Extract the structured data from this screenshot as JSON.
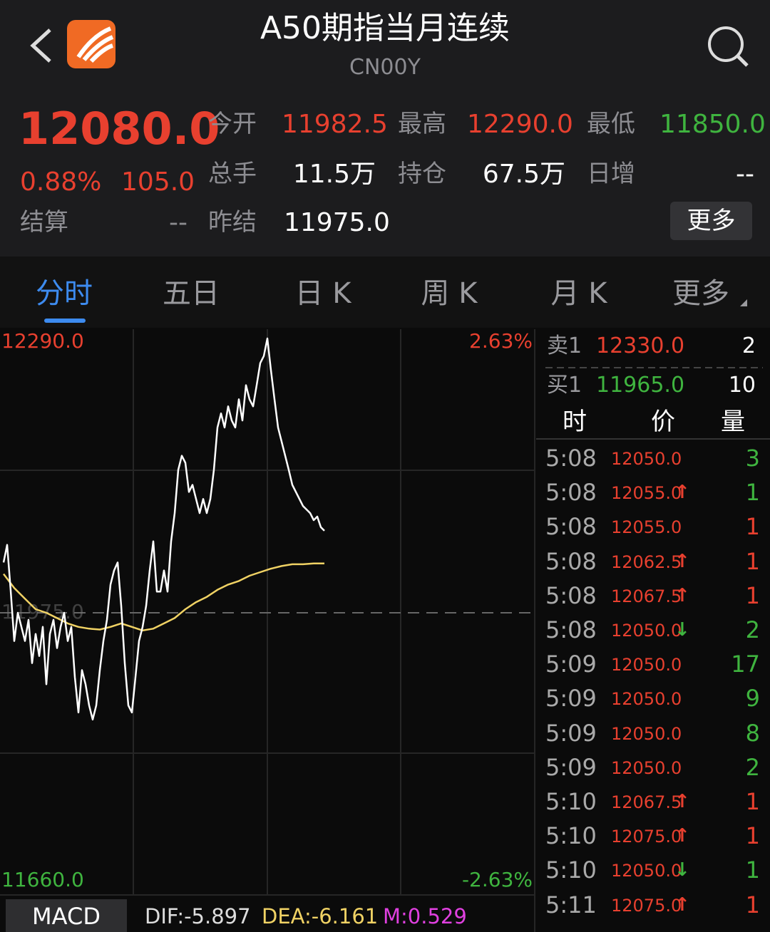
{
  "header": {
    "title": "A50期指当月连续",
    "code": "CN00Y"
  },
  "quote": {
    "price": "12080.0",
    "change_pct": "0.88%",
    "change": "105.0",
    "fields": [
      {
        "label": "今开",
        "value": "11982.5",
        "color": "#e8402f"
      },
      {
        "label": "最高",
        "value": "12290.0",
        "color": "#e8402f"
      },
      {
        "label": "最低",
        "value": "11850.0",
        "color": "#3fb43f"
      },
      {
        "label": "总手",
        "value": "11.5万",
        "color": "#ffffff"
      },
      {
        "label": "持仓",
        "value": "67.5万",
        "color": "#ffffff"
      },
      {
        "label": "日增",
        "value": "--",
        "color": "#ffffff"
      },
      {
        "label": "结算",
        "value": "--",
        "color": "#8a8a8e"
      },
      {
        "label": "昨结",
        "value": "11975.0",
        "color": "#ffffff"
      }
    ],
    "more": "更多"
  },
  "tabs": [
    "分时",
    "五日",
    "日 K",
    "周 K",
    "月 K",
    "更多"
  ],
  "chart": {
    "ylim": [
      11660,
      12290
    ],
    "yticks": [
      {
        "value": 12290,
        "label": "12290.0"
      },
      {
        "value": 11975,
        "label": "11975.0"
      },
      {
        "value": 11660,
        "label": "11660.0"
      }
    ],
    "pct_labels": [
      "2.63%",
      "-2.63%"
    ],
    "price_color": "#ffffff",
    "average_color": "#f0d264",
    "price": [
      12032,
      12052,
      12000,
      11943,
      11975,
      11959,
      11943,
      11967,
      11918,
      11951,
      11926,
      11959,
      11894,
      11951,
      11967,
      11935,
      11959,
      11975,
      11943,
      11959,
      11902,
      11862,
      11910,
      11894,
      11870,
      11854,
      11870,
      11910,
      11943,
      11967,
      12007,
      12023,
      12032,
      11983,
      11918,
      11870,
      11862,
      11902,
      11943,
      11959,
      11983,
      12023,
      12056,
      11999,
      11999,
      12023,
      11999,
      12056,
      12088,
      12137,
      12153,
      12145,
      12112,
      12120,
      12104,
      12088,
      12104,
      12088,
      12104,
      12137,
      12185,
      12201,
      12185,
      12209,
      12193,
      12185,
      12217,
      12193,
      12233,
      12217,
      12209,
      12233,
      12258,
      12266,
      12286,
      12250,
      12217,
      12185,
      12169,
      12153,
      12137,
      12120,
      12112,
      12104,
      12096,
      12092,
      12088,
      12080,
      12084,
      12072,
      12068
    ],
    "average": [
      12019,
      12003,
      11991,
      11979,
      11975,
      11969,
      11963,
      11959,
      11957,
      11956,
      11959,
      11963,
      11959,
      11955,
      11957,
      11963,
      11969,
      11979,
      11987,
      11993,
      12001,
      12007,
      12011,
      12017,
      12021,
      12025,
      12028,
      12030,
      12030,
      12031,
      12031
    ]
  },
  "orderbook": [
    {
      "side": "卖1",
      "price": "12330.0",
      "volume": "2",
      "color": "#e8402f"
    },
    {
      "side": "买1",
      "price": "11965.0",
      "volume": "10",
      "color": "#3fb43f"
    }
  ],
  "trades_header": [
    "时",
    "价",
    "量"
  ],
  "trades": [
    {
      "time": "5:08",
      "price": "12050.0",
      "arrow": "",
      "volume": "3",
      "vcolor": "#3fb43f",
      "acolor": ""
    },
    {
      "time": "5:08",
      "price": "12055.0",
      "arrow": "↑",
      "volume": "1",
      "vcolor": "#3fb43f",
      "acolor": "#e8402f"
    },
    {
      "time": "5:08",
      "price": "12055.0",
      "arrow": "",
      "volume": "1",
      "vcolor": "#e8402f",
      "acolor": ""
    },
    {
      "time": "5:08",
      "price": "12062.5",
      "arrow": "↑",
      "volume": "1",
      "vcolor": "#e8402f",
      "acolor": "#e8402f"
    },
    {
      "time": "5:08",
      "price": "12067.5",
      "arrow": "↑",
      "volume": "1",
      "vcolor": "#e8402f",
      "acolor": "#e8402f"
    },
    {
      "time": "5:08",
      "price": "12050.0",
      "arrow": "↓",
      "volume": "2",
      "vcolor": "#3fb43f",
      "acolor": "#3fb43f"
    },
    {
      "time": "5:09",
      "price": "12050.0",
      "arrow": "",
      "volume": "17",
      "vcolor": "#3fb43f",
      "acolor": ""
    },
    {
      "time": "5:09",
      "price": "12050.0",
      "arrow": "",
      "volume": "9",
      "vcolor": "#3fb43f",
      "acolor": ""
    },
    {
      "time": "5:09",
      "price": "12050.0",
      "arrow": "",
      "volume": "8",
      "vcolor": "#3fb43f",
      "acolor": ""
    },
    {
      "time": "5:09",
      "price": "12050.0",
      "arrow": "",
      "volume": "2",
      "vcolor": "#3fb43f",
      "acolor": ""
    },
    {
      "time": "5:10",
      "price": "12067.5",
      "arrow": "↑",
      "volume": "1",
      "vcolor": "#e8402f",
      "acolor": "#e8402f"
    },
    {
      "time": "5:10",
      "price": "12075.0",
      "arrow": "↑",
      "volume": "1",
      "vcolor": "#e8402f",
      "acolor": "#e8402f"
    },
    {
      "time": "5:10",
      "price": "12050.0",
      "arrow": "↓",
      "volume": "1",
      "vcolor": "#3fb43f",
      "acolor": "#3fb43f"
    },
    {
      "time": "5:11",
      "price": "12075.0",
      "arrow": "↑",
      "volume": "1",
      "vcolor": "#e8402f",
      "acolor": "#e8402f"
    }
  ],
  "macd": {
    "button": "MACD",
    "dif": "DIF:-5.897",
    "dea": "DEA:-6.161",
    "m": "M:0.529"
  }
}
